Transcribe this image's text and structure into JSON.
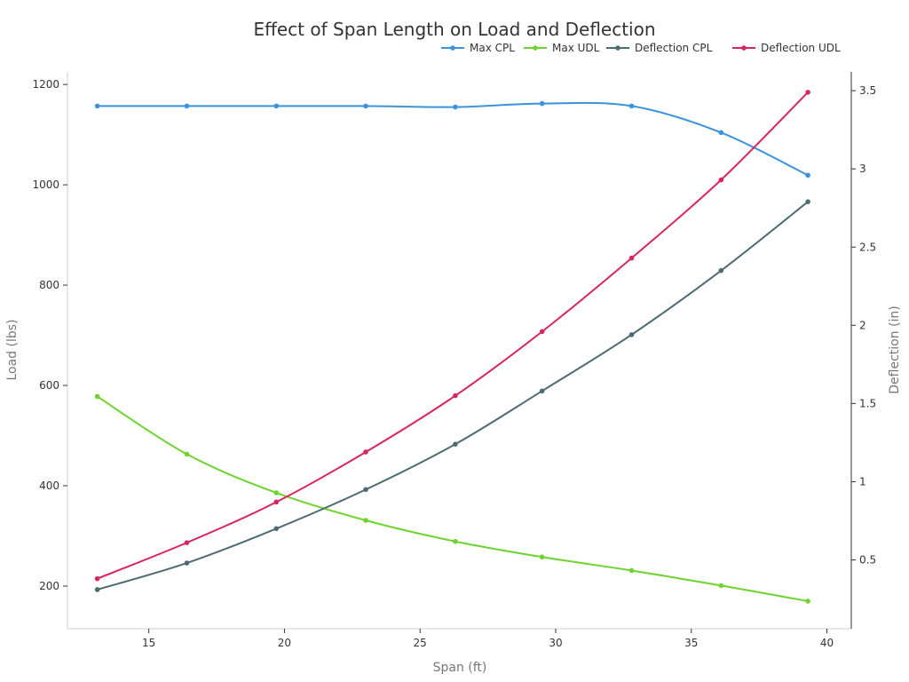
{
  "chart_data": {
    "type": "line",
    "title": "Effect of Span Length on Load and Deflection",
    "xlabel": "Span (ft)",
    "ylabel_left": "Load (lbs)",
    "ylabel_right": "Deflection (in)",
    "x": [
      13.1,
      16.4,
      19.7,
      23.0,
      26.3,
      29.5,
      32.8,
      36.1,
      39.3
    ],
    "xlim": [
      12.0,
      40.9
    ],
    "xticks": [
      15,
      20,
      25,
      30,
      35,
      40
    ],
    "ylim_left": [
      115,
      1225
    ],
    "yticks_left": [
      200,
      400,
      600,
      800,
      1000,
      1200
    ],
    "ylim_right": [
      0.06,
      3.62
    ],
    "yticks_right": [
      0.5,
      1,
      1.5,
      2,
      2.5,
      3,
      3.5
    ],
    "grid": false,
    "legend_position": "top-right",
    "series": [
      {
        "name": "Max CPL",
        "axis": "left",
        "color": "#3a93dc",
        "values": [
          1157,
          1157,
          1157,
          1157,
          1155,
          1162,
          1157,
          1104,
          1019
        ]
      },
      {
        "name": "Max UDL",
        "axis": "left",
        "color": "#6dd42f",
        "values": [
          578,
          463,
          386,
          331,
          289,
          258,
          231,
          201,
          170
        ]
      },
      {
        "name": "Deflection CPL",
        "axis": "right",
        "color": "#4e6a72",
        "values": [
          0.31,
          0.48,
          0.7,
          0.95,
          1.24,
          1.58,
          1.94,
          2.35,
          2.79
        ]
      },
      {
        "name": "Deflection UDL",
        "axis": "right",
        "color": "#d8255f",
        "values": [
          0.38,
          0.61,
          0.87,
          1.19,
          1.55,
          1.96,
          2.43,
          2.93,
          3.49
        ]
      }
    ]
  }
}
